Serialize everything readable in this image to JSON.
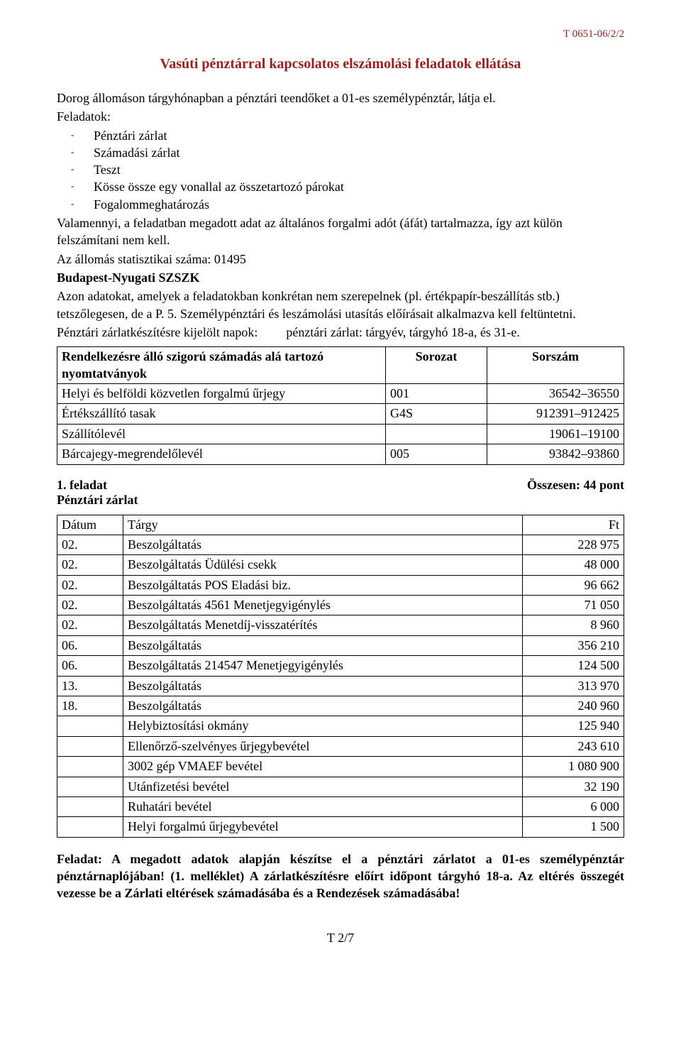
{
  "doc_id": "T 0651-06/2/2",
  "title": "Vasúti pénztárral kapcsolatos elszámolási feladatok ellátása",
  "intro": "Dorog állomáson tárgyhónapban a pénztári teendőket a 01-es személypénztár, látja el.",
  "feladatok_label": "Feladatok:",
  "feladatok_items": [
    "Pénztári zárlat",
    "Számadási zárlat",
    "Teszt",
    "Kösse össze egy vonallal az összetartozó párokat",
    "Fogalommeghatározás"
  ],
  "valamennyi": "Valamennyi, a feladatban megadott adat az általános forgalmi adót (áfát) tartalmazza, így azt külön felszámítani nem kell.",
  "statszam": "Az állomás statisztikai száma: 01495",
  "szszk": "Budapest-Nyugati SZSZK",
  "azon": "Azon adatokat, amelyek a feladatokban konkrétan nem szerepelnek (pl. értékpapír-beszállítás stb.) tetszőlegesen, de a P. 5. Személypénztári és leszámolási utasítás előírásait alkalmazva kell feltüntetni.",
  "zarlat_left": "Pénztári zárlatkészítésre kijelölt napok:",
  "zarlat_right": "pénztári zárlat: tárgyév, tárgyhó 18-a, és 31-e.",
  "table1": {
    "headers": [
      "Rendelkezésre álló szigorú számadás alá tartozó nyomtatványok",
      "Sorozat",
      "Sorszám"
    ],
    "rows": [
      [
        "Helyi és belföldi közvetlen forgalmú űrjegy",
        "001",
        "36542–36550"
      ],
      [
        "Értékszállító tasak",
        "G4S",
        "912391–912425"
      ],
      [
        "Szállítólevél",
        "",
        "19061–19100"
      ],
      [
        "Bárcajegy-megrendelőlevél",
        "005",
        "93842–93860"
      ]
    ]
  },
  "task_no": "1. feladat",
  "task_points": "Összesen: 44 pont",
  "task_sub": "Pénztári zárlat",
  "table2": {
    "headers": [
      "Dátum",
      "Tárgy",
      "Ft"
    ],
    "rows": [
      [
        "02.",
        "Beszolgáltatás",
        "228 975"
      ],
      [
        "02.",
        "Beszolgáltatás Üdülési csekk",
        "48 000"
      ],
      [
        "02.",
        "Beszolgáltatás POS Eladási biz.",
        "96 662"
      ],
      [
        "02.",
        "Beszolgáltatás 4561 Menetjegyigénylés",
        "71 050"
      ],
      [
        "02.",
        "Beszolgáltatás Menetdíj-visszatérítés",
        "8 960"
      ],
      [
        "06.",
        "Beszolgáltatás",
        "356 210"
      ],
      [
        "06.",
        "Beszolgáltatás 214547 Menetjegyigénylés",
        "124 500"
      ],
      [
        "13.",
        "Beszolgáltatás",
        "313 970"
      ],
      [
        "18.",
        "Beszolgáltatás",
        "240 960"
      ],
      [
        "",
        "Helybiztosítási okmány",
        "125 940"
      ],
      [
        "",
        "Ellenőrző-szelvényes űrjegybevétel",
        "243 610"
      ],
      [
        "",
        "3002 gép VMAEF bevétel",
        "1 080 900"
      ],
      [
        "",
        "Utánfizetési bevétel",
        "32 190"
      ],
      [
        "",
        "Ruhatári bevétel",
        "6 000"
      ],
      [
        "",
        "Helyi forgalmú űrjegybevétel",
        "1 500"
      ]
    ]
  },
  "closing": "Feladat: A megadott adatok alapján készítse el a pénztári zárlatot a 01-es személypénztár pénztárnaplójában! (1. melléklet) A zárlatkészítésre előírt időpont tárgyhó 18-a. Az eltérés összegét vezesse be a Zárlati eltérések számadásába és a Rendezések számadásába!",
  "footer": "T 2/7"
}
